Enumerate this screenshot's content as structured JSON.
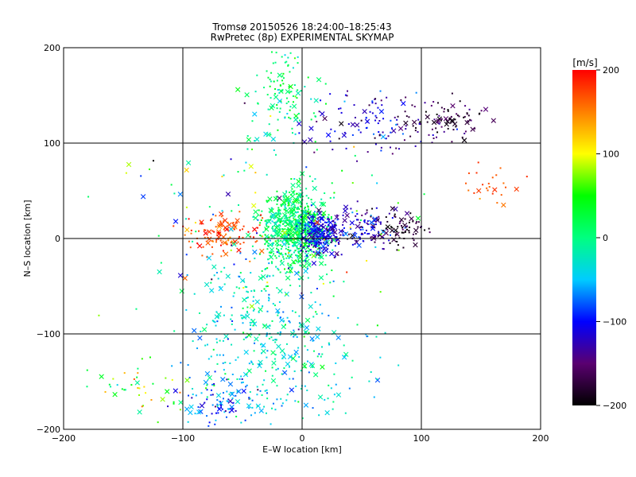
{
  "chart_data": {
    "type": "scatter",
    "title": "Tromsø 20150526 18:24:00–18:25:43",
    "subtitle": "RwPretec (8p) EXPERIMENTAL SKYMAP",
    "xlabel": "E–W location [km]",
    "ylabel": "N–S location [km]",
    "xlim": [
      -200,
      200
    ],
    "ylim": [
      -200,
      200
    ],
    "xticks": [
      -200,
      -100,
      0,
      100,
      200
    ],
    "yticks": [
      -200,
      -100,
      0,
      100,
      200
    ],
    "grid": true,
    "colorbar": {
      "label": "[m/s]",
      "range": [
        -200,
        200
      ],
      "ticks": [
        200,
        100,
        0,
        -100,
        -200
      ],
      "colormap": "rainbow",
      "colors": [
        "#000000",
        "#5a0070",
        "#0000ff",
        "#00ccff",
        "#00ff80",
        "#00ff00",
        "#ffff00",
        "#ff8000",
        "#ff0000"
      ]
    },
    "markers": {
      "point": "dot",
      "cross": "x"
    },
    "clusters": [
      {
        "cx": -5,
        "cy": 10,
        "sx": 20,
        "sy": 30,
        "n": 700,
        "v": 10,
        "vs": 35
      },
      {
        "cx": 15,
        "cy": 5,
        "sx": 12,
        "sy": 15,
        "n": 220,
        "v": -110,
        "vs": 30
      },
      {
        "cx": 50,
        "cy": 10,
        "sx": 25,
        "sy": 15,
        "n": 120,
        "v": -120,
        "vs": 40
      },
      {
        "cx": 85,
        "cy": 10,
        "sx": 15,
        "sy": 12,
        "n": 70,
        "v": -180,
        "vs": 25
      },
      {
        "cx": 120,
        "cy": 125,
        "sx": 25,
        "sy": 15,
        "n": 90,
        "v": -170,
        "vs": 30
      },
      {
        "cx": 60,
        "cy": 120,
        "sx": 40,
        "sy": 25,
        "n": 110,
        "v": -120,
        "vs": 40
      },
      {
        "cx": 160,
        "cy": 55,
        "sx": 20,
        "sy": 20,
        "n": 25,
        "v": 170,
        "vs": 20
      },
      {
        "cx": -65,
        "cy": 5,
        "sx": 25,
        "sy": 15,
        "n": 110,
        "v": 170,
        "vs": 30
      },
      {
        "cx": -40,
        "cy": -85,
        "sx": 40,
        "sy": 50,
        "n": 220,
        "v": -30,
        "vs": 40
      },
      {
        "cx": -70,
        "cy": -170,
        "sx": 25,
        "sy": 18,
        "n": 100,
        "v": -70,
        "vs": 50
      },
      {
        "cx": -15,
        "cy": 150,
        "sx": 20,
        "sy": 40,
        "n": 120,
        "v": 10,
        "vs": 40
      },
      {
        "cx": 0,
        "cy": -130,
        "sx": 50,
        "sy": 45,
        "n": 150,
        "v": -30,
        "vs": 40
      },
      {
        "cx": -140,
        "cy": -160,
        "sx": 30,
        "sy": 20,
        "n": 40,
        "v": 60,
        "vs": 80
      },
      {
        "cx": -20,
        "cy": 0,
        "sx": 100,
        "sy": 100,
        "n": 140,
        "v": 0,
        "vs": 110
      }
    ]
  }
}
